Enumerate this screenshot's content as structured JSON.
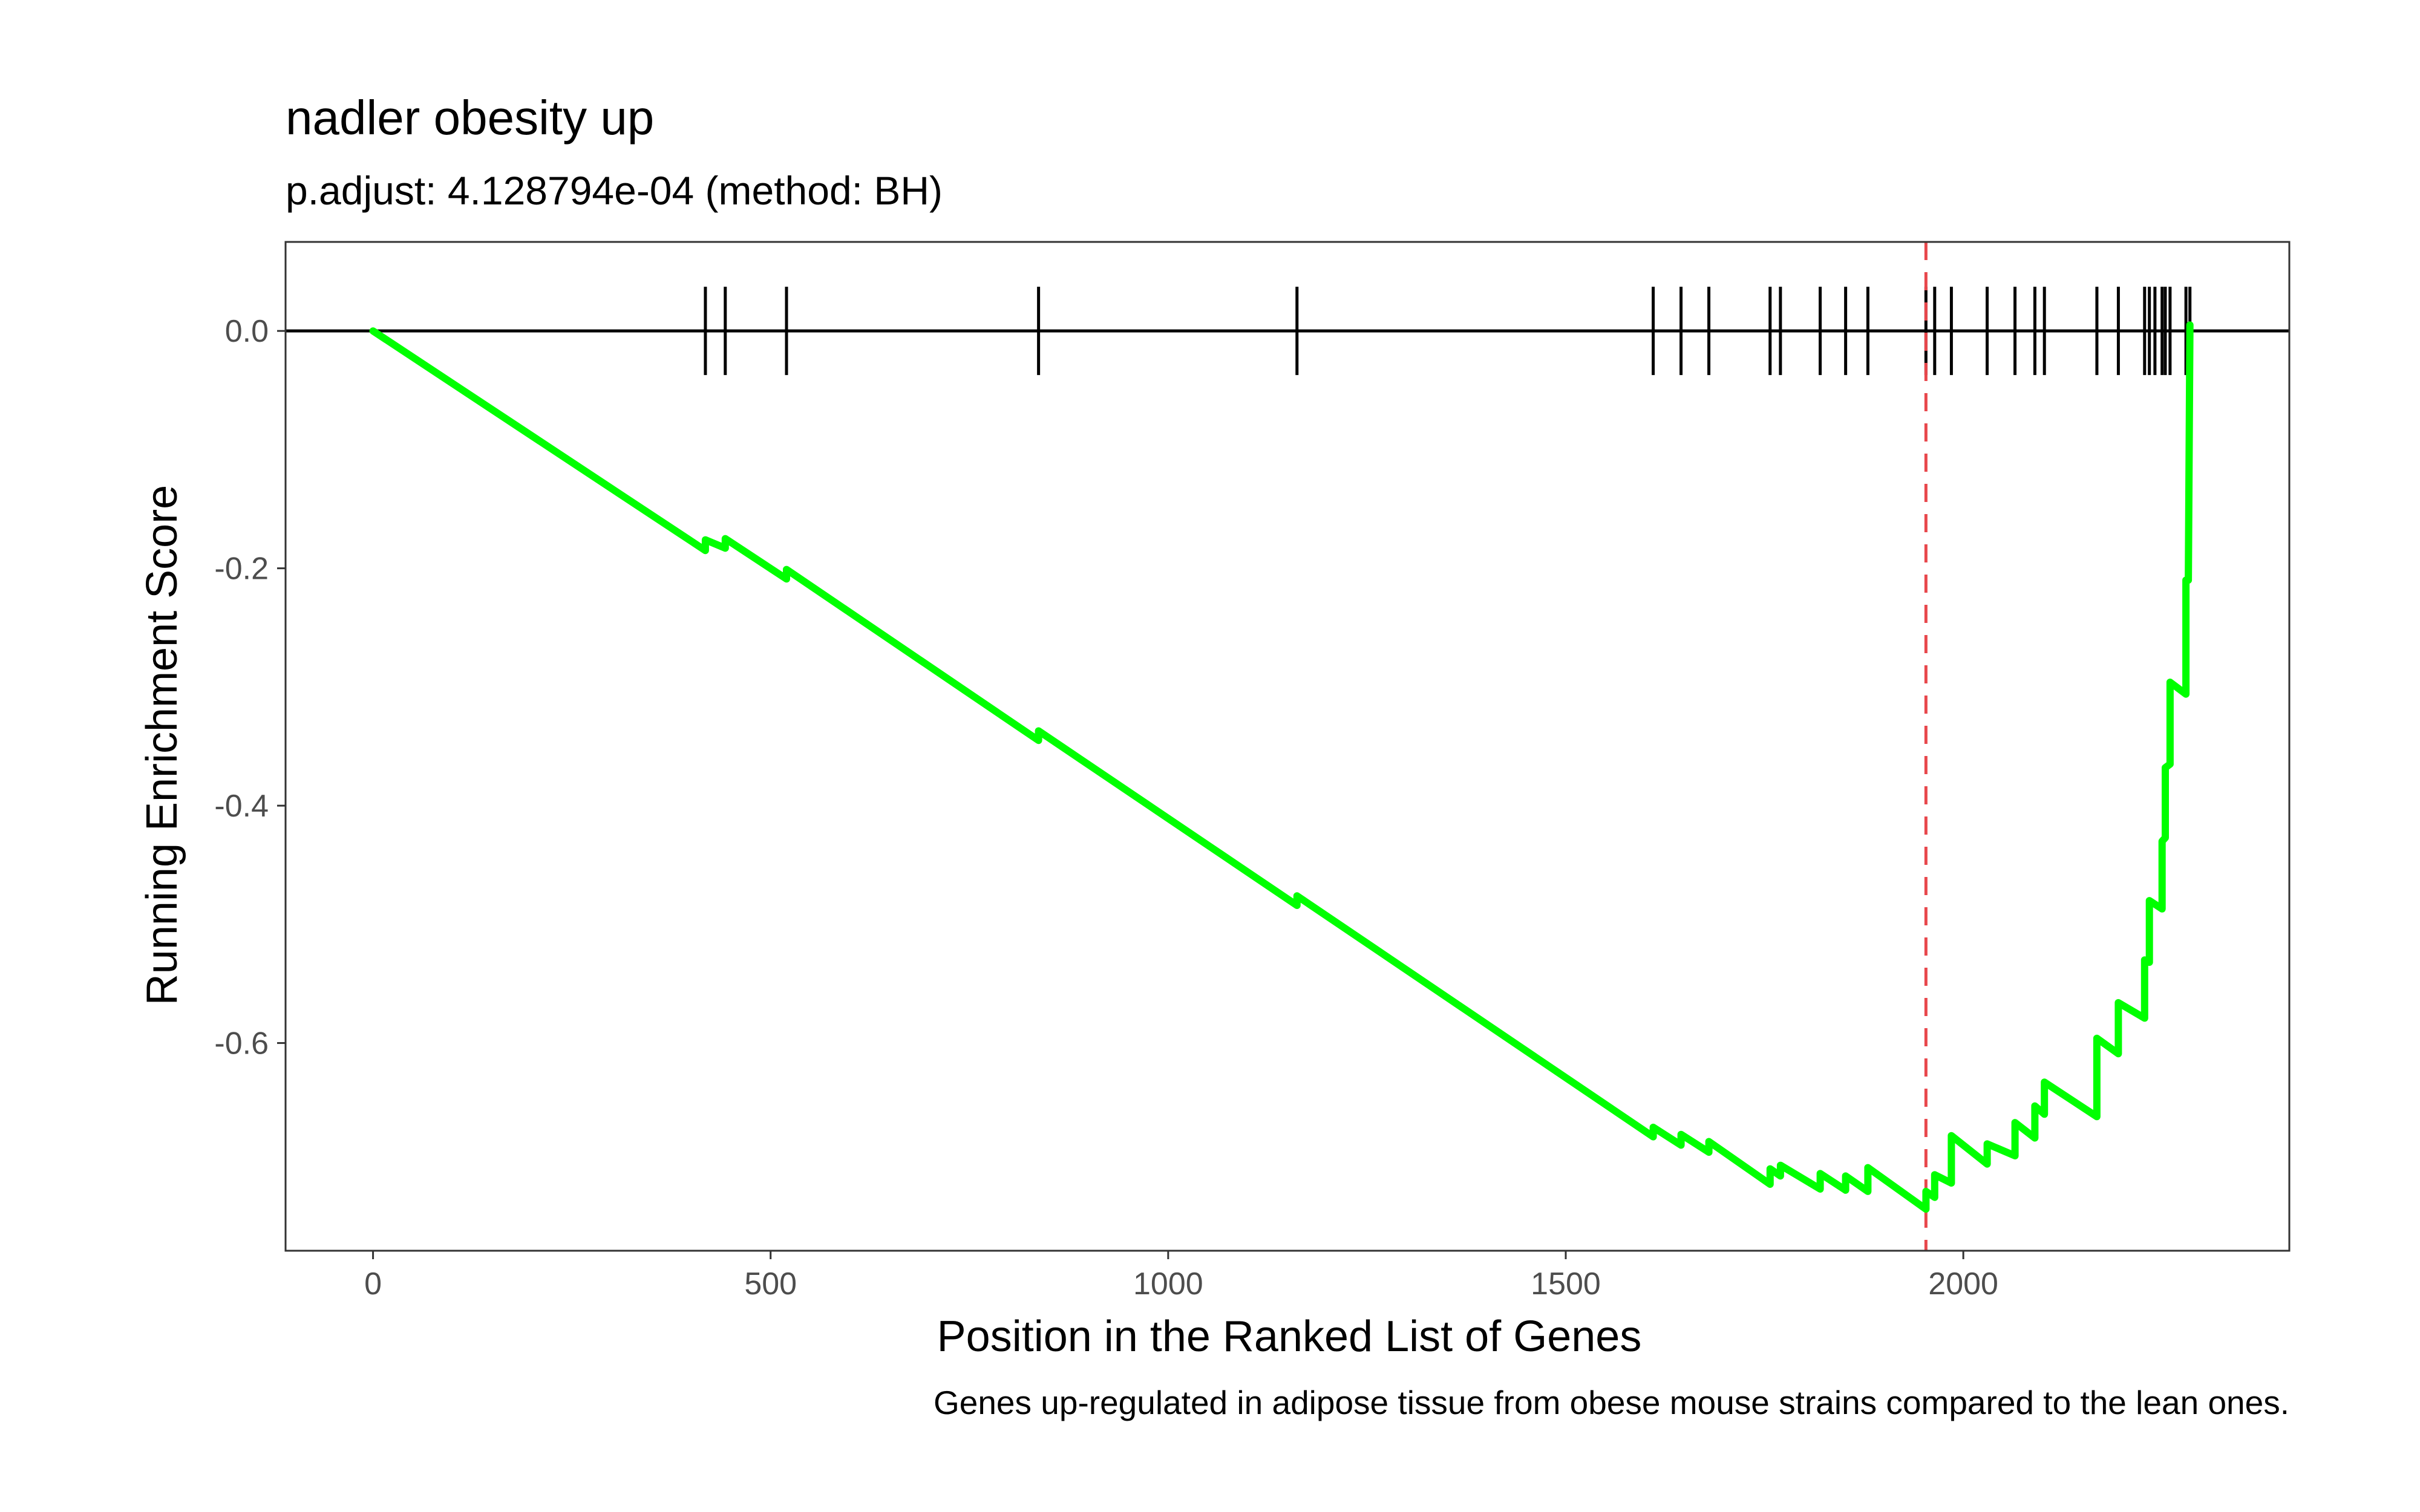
{
  "chart_data": {
    "type": "line",
    "title": "nadler obesity up",
    "subtitle": "p.adjust: 4.128794e-04 (method: BH)",
    "xlabel": "Position in the Ranked List of Genes",
    "ylabel": "Running Enrichment Score",
    "caption": "Genes up-regulated in adipose tissue from obese mouse strains compared to the lean ones.",
    "xlim": [
      -110,
      2410
    ],
    "ylim": [
      -0.775,
      0.075
    ],
    "x_ticks": [
      0,
      500,
      1000,
      1500,
      2000
    ],
    "x_tick_labels": [
      "0",
      "500",
      "1000",
      "1500",
      "2000"
    ],
    "y_ticks": [
      0.0,
      -0.2,
      -0.4,
      -0.6
    ],
    "y_tick_labels": [
      "0.0",
      "-0.2",
      "-0.4",
      "-0.6"
    ],
    "grid": false,
    "colors": {
      "series": "#00ff00",
      "zero_line": "#000000",
      "gene_ticks": "#000000",
      "peak_line": "#e8474c"
    },
    "peak_position": 1953,
    "gene_hits": [
      418,
      443,
      520,
      837,
      1162,
      1610,
      1645,
      1680,
      1757,
      1770,
      1820,
      1852,
      1880,
      1953,
      1964,
      1985,
      2030,
      2065,
      2090,
      2102,
      2168,
      2195,
      2228,
      2234,
      2241,
      2250,
      2254,
      2260,
      2280,
      2285
    ],
    "series": [
      {
        "values": [
          [
            0,
            0.0
          ],
          [
            418,
            -0.185
          ],
          [
            418,
            -0.176
          ],
          [
            443,
            -0.183
          ],
          [
            443,
            -0.175
          ],
          [
            520,
            -0.209
          ],
          [
            520,
            -0.201
          ],
          [
            837,
            -0.345
          ],
          [
            837,
            -0.337
          ],
          [
            1162,
            -0.484
          ],
          [
            1162,
            -0.476
          ],
          [
            1610,
            -0.679
          ],
          [
            1610,
            -0.671
          ],
          [
            1645,
            -0.686
          ],
          [
            1645,
            -0.677
          ],
          [
            1680,
            -0.692
          ],
          [
            1680,
            -0.683
          ],
          [
            1757,
            -0.719
          ],
          [
            1757,
            -0.706
          ],
          [
            1770,
            -0.712
          ],
          [
            1770,
            -0.703
          ],
          [
            1820,
            -0.723
          ],
          [
            1820,
            -0.71
          ],
          [
            1852,
            -0.724
          ],
          [
            1852,
            -0.712
          ],
          [
            1880,
            -0.725
          ],
          [
            1880,
            -0.705
          ],
          [
            1953,
            -0.74
          ],
          [
            1953,
            -0.725
          ],
          [
            1964,
            -0.73
          ],
          [
            1964,
            -0.711
          ],
          [
            1985,
            -0.718
          ],
          [
            1985,
            -0.678
          ],
          [
            2030,
            -0.702
          ],
          [
            2030,
            -0.685
          ],
          [
            2065,
            -0.695
          ],
          [
            2065,
            -0.667
          ],
          [
            2090,
            -0.68
          ],
          [
            2090,
            -0.653
          ],
          [
            2102,
            -0.66
          ],
          [
            2102,
            -0.633
          ],
          [
            2168,
            -0.662
          ],
          [
            2168,
            -0.596
          ],
          [
            2195,
            -0.609
          ],
          [
            2195,
            -0.566
          ],
          [
            2228,
            -0.579
          ],
          [
            2228,
            -0.53
          ],
          [
            2234,
            -0.532
          ],
          [
            2234,
            -0.48
          ],
          [
            2250,
            -0.487
          ],
          [
            2250,
            -0.43
          ],
          [
            2254,
            -0.427
          ],
          [
            2254,
            -0.368
          ],
          [
            2260,
            -0.365
          ],
          [
            2260,
            -0.296
          ],
          [
            2280,
            -0.306
          ],
          [
            2280,
            -0.21
          ],
          [
            2283,
            -0.21
          ],
          [
            2285,
            0.005
          ]
        ]
      }
    ]
  }
}
